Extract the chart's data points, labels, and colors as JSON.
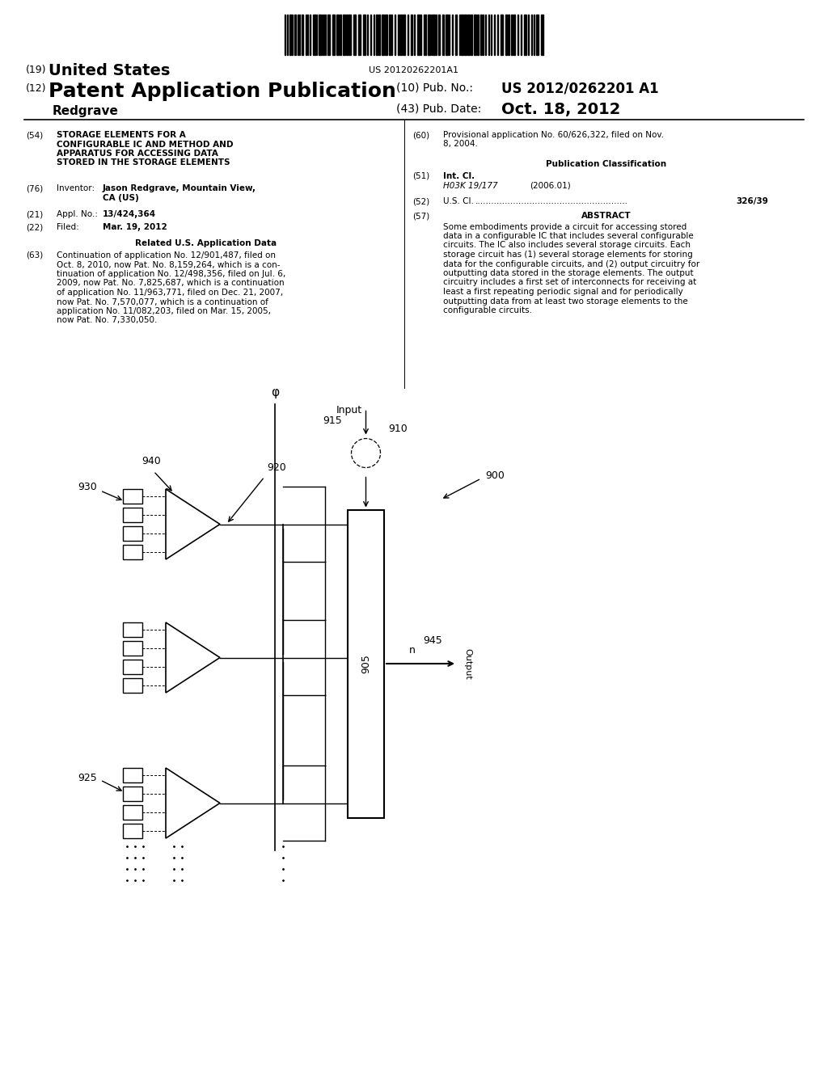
{
  "bg_color": "#ffffff",
  "barcode_text": "US 20120262201A1",
  "title_19": "(19)",
  "title_19b": "United States",
  "title_12": "(12)",
  "title_12b": "Patent Application Publication",
  "pub_no_label": "(10) Pub. No.:",
  "pub_no_value": "US 2012/0262201 A1",
  "pub_date_label": "(43) Pub. Date:",
  "pub_date_value": "Oct. 18, 2012",
  "inventor_name": "Redgrave",
  "field_54_label": "(54)",
  "field_54_text_lines": [
    "STORAGE ELEMENTS FOR A",
    "CONFIGURABLE IC AND METHOD AND",
    "APPARATUS FOR ACCESSING DATA",
    "STORED IN THE STORAGE ELEMENTS"
  ],
  "field_76_label": "(76)",
  "field_76_title": "Inventor:",
  "field_76_line1": "Jason Redgrave, Mountain View,",
  "field_76_line2": "CA (US)",
  "field_21_label": "(21)",
  "field_21_title": "Appl. No.:",
  "field_21_text": "13/424,364",
  "field_22_label": "(22)",
  "field_22_title": "Filed:",
  "field_22_text": "Mar. 19, 2012",
  "related_title": "Related U.S. Application Data",
  "field_63_label": "(63)",
  "field_63_lines": [
    "Continuation of application No. 12/901,487, filed on",
    "Oct. 8, 2010, now Pat. No. 8,159,264, which is a con-",
    "tinuation of application No. 12/498,356, filed on Jul. 6,",
    "2009, now Pat. No. 7,825,687, which is a continuation",
    "of application No. 11/963,771, filed on Dec. 21, 2007,",
    "now Pat. No. 7,570,077, which is a continuation of",
    "application No. 11/082,203, filed on Mar. 15, 2005,",
    "now Pat. No. 7,330,050."
  ],
  "field_60_label": "(60)",
  "field_60_line1": "Provisional application No. 60/626,322, filed on Nov.",
  "field_60_line2": "8, 2004.",
  "pub_class_title": "Publication Classification",
  "field_51_label": "(51)",
  "field_51_title": "Int. Cl.",
  "field_51_class": "H03K 19/177",
  "field_51_year": "(2006.01)",
  "field_52_label": "(52)",
  "field_52_title": "U.S. Cl.",
  "field_52_dots": "........................................................",
  "field_52_value": "326/39",
  "field_57_label": "(57)",
  "field_57_title": "ABSTRACT",
  "field_57_lines": [
    "Some embodiments provide a circuit for accessing stored",
    "data in a configurable IC that includes several configurable",
    "circuits. The IC also includes several storage circuits. Each",
    "storage circuit has (1) several storage elements for storing",
    "data for the configurable circuits, and (2) output circuitry for",
    "outputting data stored in the storage elements. The output",
    "circuitry includes a first set of interconnects for receiving at",
    "least a first repeating periodic signal and for periodically",
    "outputting data from at least two storage elements to the",
    "configurable circuits."
  ],
  "diagram_label_900": "900",
  "diagram_label_905": "905",
  "diagram_label_910": "910",
  "diagram_label_915": "915",
  "diagram_label_920": "920",
  "diagram_label_925": "925",
  "diagram_label_930": "930",
  "diagram_label_940": "940",
  "diagram_label_945": "945",
  "diagram_label_phi": "φ",
  "diagram_label_n": "n",
  "diagram_label_input": "Input",
  "diagram_label_output": "Output"
}
